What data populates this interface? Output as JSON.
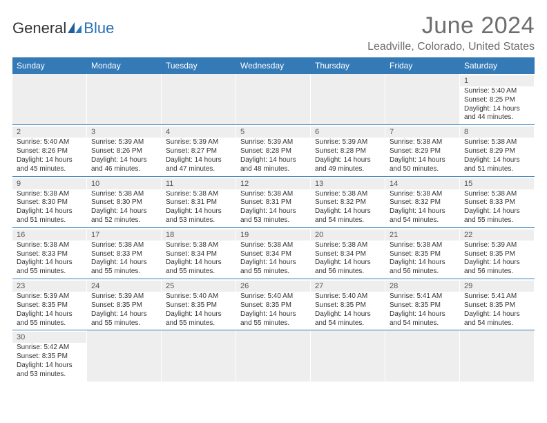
{
  "logo": {
    "part1": "General",
    "part2": "Blue"
  },
  "title": "June 2024",
  "location": "Leadville, Colorado, United States",
  "colors": {
    "header_bg": "#337ab7",
    "header_fg": "#ffffff",
    "daynum_bg": "#eeeeee",
    "text": "#333333",
    "title_color": "#6d6d6d"
  },
  "weekdays": [
    "Sunday",
    "Monday",
    "Tuesday",
    "Wednesday",
    "Thursday",
    "Friday",
    "Saturday"
  ],
  "weeks": [
    [
      null,
      null,
      null,
      null,
      null,
      null,
      {
        "n": "1",
        "sr": "Sunrise: 5:40 AM",
        "ss": "Sunset: 8:25 PM",
        "d1": "Daylight: 14 hours",
        "d2": "and 44 minutes."
      }
    ],
    [
      {
        "n": "2",
        "sr": "Sunrise: 5:40 AM",
        "ss": "Sunset: 8:26 PM",
        "d1": "Daylight: 14 hours",
        "d2": "and 45 minutes."
      },
      {
        "n": "3",
        "sr": "Sunrise: 5:39 AM",
        "ss": "Sunset: 8:26 PM",
        "d1": "Daylight: 14 hours",
        "d2": "and 46 minutes."
      },
      {
        "n": "4",
        "sr": "Sunrise: 5:39 AM",
        "ss": "Sunset: 8:27 PM",
        "d1": "Daylight: 14 hours",
        "d2": "and 47 minutes."
      },
      {
        "n": "5",
        "sr": "Sunrise: 5:39 AM",
        "ss": "Sunset: 8:28 PM",
        "d1": "Daylight: 14 hours",
        "d2": "and 48 minutes."
      },
      {
        "n": "6",
        "sr": "Sunrise: 5:39 AM",
        "ss": "Sunset: 8:28 PM",
        "d1": "Daylight: 14 hours",
        "d2": "and 49 minutes."
      },
      {
        "n": "7",
        "sr": "Sunrise: 5:38 AM",
        "ss": "Sunset: 8:29 PM",
        "d1": "Daylight: 14 hours",
        "d2": "and 50 minutes."
      },
      {
        "n": "8",
        "sr": "Sunrise: 5:38 AM",
        "ss": "Sunset: 8:29 PM",
        "d1": "Daylight: 14 hours",
        "d2": "and 51 minutes."
      }
    ],
    [
      {
        "n": "9",
        "sr": "Sunrise: 5:38 AM",
        "ss": "Sunset: 8:30 PM",
        "d1": "Daylight: 14 hours",
        "d2": "and 51 minutes."
      },
      {
        "n": "10",
        "sr": "Sunrise: 5:38 AM",
        "ss": "Sunset: 8:30 PM",
        "d1": "Daylight: 14 hours",
        "d2": "and 52 minutes."
      },
      {
        "n": "11",
        "sr": "Sunrise: 5:38 AM",
        "ss": "Sunset: 8:31 PM",
        "d1": "Daylight: 14 hours",
        "d2": "and 53 minutes."
      },
      {
        "n": "12",
        "sr": "Sunrise: 5:38 AM",
        "ss": "Sunset: 8:31 PM",
        "d1": "Daylight: 14 hours",
        "d2": "and 53 minutes."
      },
      {
        "n": "13",
        "sr": "Sunrise: 5:38 AM",
        "ss": "Sunset: 8:32 PM",
        "d1": "Daylight: 14 hours",
        "d2": "and 54 minutes."
      },
      {
        "n": "14",
        "sr": "Sunrise: 5:38 AM",
        "ss": "Sunset: 8:32 PM",
        "d1": "Daylight: 14 hours",
        "d2": "and 54 minutes."
      },
      {
        "n": "15",
        "sr": "Sunrise: 5:38 AM",
        "ss": "Sunset: 8:33 PM",
        "d1": "Daylight: 14 hours",
        "d2": "and 55 minutes."
      }
    ],
    [
      {
        "n": "16",
        "sr": "Sunrise: 5:38 AM",
        "ss": "Sunset: 8:33 PM",
        "d1": "Daylight: 14 hours",
        "d2": "and 55 minutes."
      },
      {
        "n": "17",
        "sr": "Sunrise: 5:38 AM",
        "ss": "Sunset: 8:33 PM",
        "d1": "Daylight: 14 hours",
        "d2": "and 55 minutes."
      },
      {
        "n": "18",
        "sr": "Sunrise: 5:38 AM",
        "ss": "Sunset: 8:34 PM",
        "d1": "Daylight: 14 hours",
        "d2": "and 55 minutes."
      },
      {
        "n": "19",
        "sr": "Sunrise: 5:38 AM",
        "ss": "Sunset: 8:34 PM",
        "d1": "Daylight: 14 hours",
        "d2": "and 55 minutes."
      },
      {
        "n": "20",
        "sr": "Sunrise: 5:38 AM",
        "ss": "Sunset: 8:34 PM",
        "d1": "Daylight: 14 hours",
        "d2": "and 56 minutes."
      },
      {
        "n": "21",
        "sr": "Sunrise: 5:38 AM",
        "ss": "Sunset: 8:35 PM",
        "d1": "Daylight: 14 hours",
        "d2": "and 56 minutes."
      },
      {
        "n": "22",
        "sr": "Sunrise: 5:39 AM",
        "ss": "Sunset: 8:35 PM",
        "d1": "Daylight: 14 hours",
        "d2": "and 56 minutes."
      }
    ],
    [
      {
        "n": "23",
        "sr": "Sunrise: 5:39 AM",
        "ss": "Sunset: 8:35 PM",
        "d1": "Daylight: 14 hours",
        "d2": "and 55 minutes."
      },
      {
        "n": "24",
        "sr": "Sunrise: 5:39 AM",
        "ss": "Sunset: 8:35 PM",
        "d1": "Daylight: 14 hours",
        "d2": "and 55 minutes."
      },
      {
        "n": "25",
        "sr": "Sunrise: 5:40 AM",
        "ss": "Sunset: 8:35 PM",
        "d1": "Daylight: 14 hours",
        "d2": "and 55 minutes."
      },
      {
        "n": "26",
        "sr": "Sunrise: 5:40 AM",
        "ss": "Sunset: 8:35 PM",
        "d1": "Daylight: 14 hours",
        "d2": "and 55 minutes."
      },
      {
        "n": "27",
        "sr": "Sunrise: 5:40 AM",
        "ss": "Sunset: 8:35 PM",
        "d1": "Daylight: 14 hours",
        "d2": "and 54 minutes."
      },
      {
        "n": "28",
        "sr": "Sunrise: 5:41 AM",
        "ss": "Sunset: 8:35 PM",
        "d1": "Daylight: 14 hours",
        "d2": "and 54 minutes."
      },
      {
        "n": "29",
        "sr": "Sunrise: 5:41 AM",
        "ss": "Sunset: 8:35 PM",
        "d1": "Daylight: 14 hours",
        "d2": "and 54 minutes."
      }
    ],
    [
      {
        "n": "30",
        "sr": "Sunrise: 5:42 AM",
        "ss": "Sunset: 8:35 PM",
        "d1": "Daylight: 14 hours",
        "d2": "and 53 minutes."
      },
      null,
      null,
      null,
      null,
      null,
      null
    ]
  ]
}
